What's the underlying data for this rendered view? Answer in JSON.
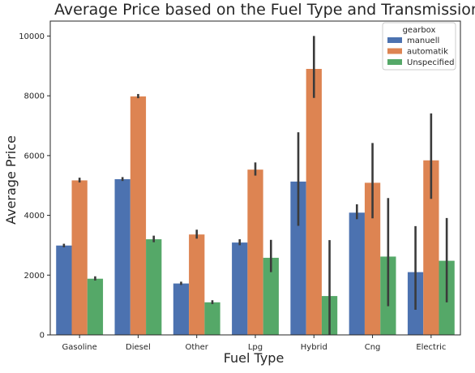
{
  "chart_data": {
    "type": "bar",
    "title": "Average Price based on the Fuel Type and Transmission",
    "xlabel": "Fuel Type",
    "ylabel": "Average Price",
    "ylim": [
      0,
      10500
    ],
    "yticks": [
      0,
      2000,
      4000,
      6000,
      8000,
      10000
    ],
    "categories": [
      "Gasoline",
      "Diesel",
      "Other",
      "Lpg",
      "Hybrid",
      "Cng",
      "Electric"
    ],
    "legend": {
      "title": "gearbox",
      "placement": "top-right"
    },
    "grid": false,
    "series": [
      {
        "name": "manuell",
        "color": "#4c72b0",
        "values": [
          2990,
          5210,
          1720,
          3090,
          5130,
          4090,
          2100
        ],
        "ci": [
          [
            2930,
            3050
          ],
          [
            5150,
            5280
          ],
          [
            1670,
            1780
          ],
          [
            3000,
            3200
          ],
          [
            3650,
            6780
          ],
          [
            3870,
            4370
          ],
          [
            840,
            3640
          ]
        ]
      },
      {
        "name": "automatik",
        "color": "#dd8452",
        "values": [
          5170,
          7980,
          3360,
          5530,
          8900,
          5090,
          5840
        ],
        "ci": [
          [
            5100,
            5260
          ],
          [
            7920,
            8060
          ],
          [
            3220,
            3520
          ],
          [
            5330,
            5770
          ],
          [
            7930,
            10000
          ],
          [
            3900,
            6420
          ],
          [
            4550,
            7410
          ]
        ]
      },
      {
        "name": "Unspecified",
        "color": "#55a868",
        "values": [
          1880,
          3200,
          1090,
          2580,
          1300,
          2620,
          2480
        ],
        "ci": [
          [
            1820,
            1960
          ],
          [
            3100,
            3320
          ],
          [
            1030,
            1160
          ],
          [
            2100,
            3180
          ],
          [
            0,
            3170
          ],
          [
            960,
            4580
          ],
          [
            1090,
            3910
          ]
        ]
      }
    ]
  }
}
